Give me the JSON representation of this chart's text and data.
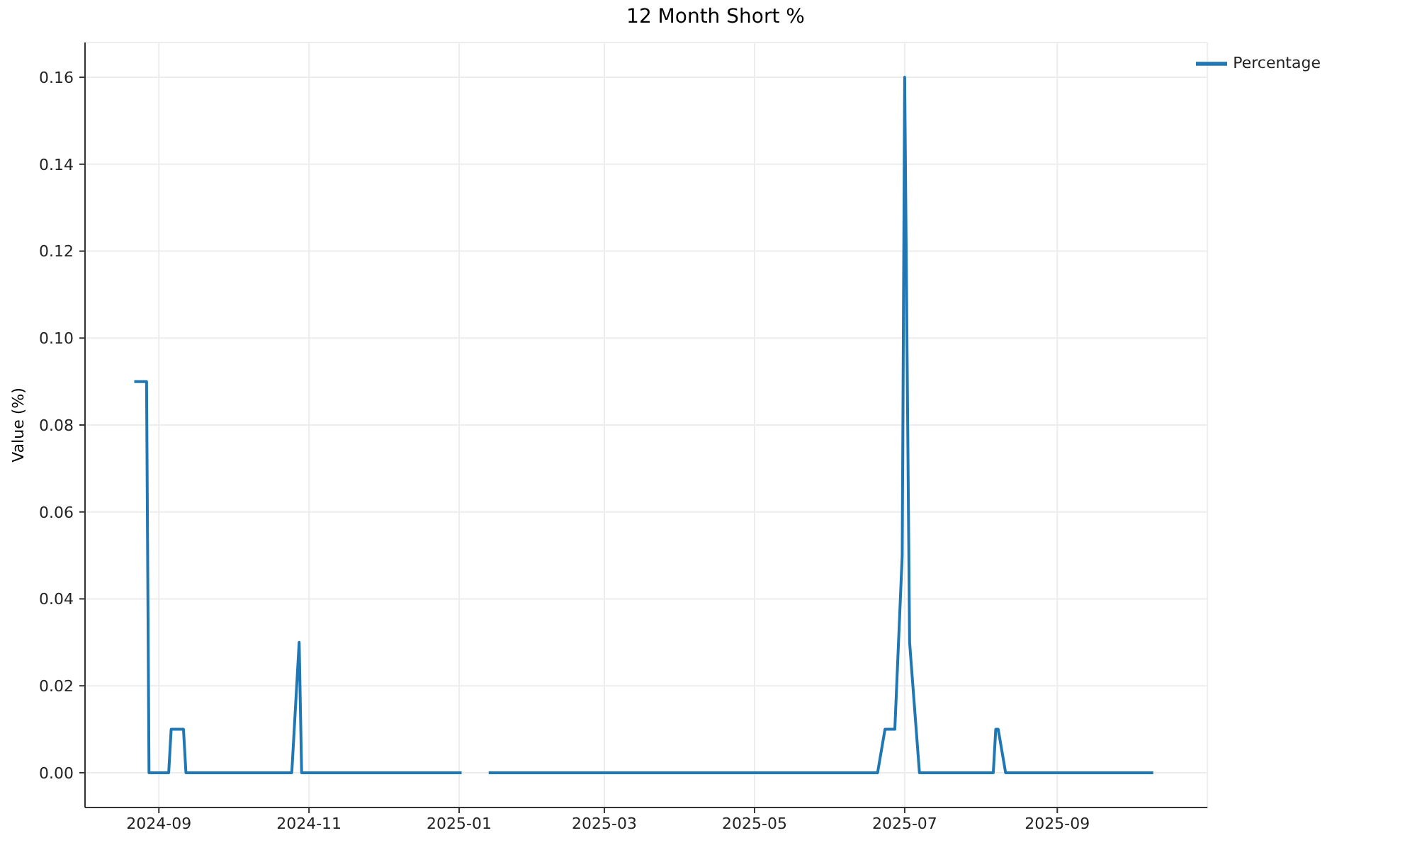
{
  "chart_data": {
    "type": "line",
    "title": "12 Month Short %",
    "ylabel": "Value (%)",
    "x": [
      "2024-08-22",
      "2024-08-27",
      "2024-08-28",
      "2024-09-05",
      "2024-09-06",
      "2024-09-11",
      "2024-09-12",
      "2024-10-25",
      "2024-10-28",
      "2024-10-29",
      "2025-01-02",
      "2025-01-07",
      "2025-01-13",
      "2025-06-20",
      "2025-06-23",
      "2025-06-27",
      "2025-06-30",
      "2025-07-01",
      "2025-07-03",
      "2025-07-07",
      "2025-08-06",
      "2025-08-07",
      "2025-08-08",
      "2025-08-11",
      "2025-10-10"
    ],
    "series": [
      {
        "name": "Percentage",
        "color": "#1f77b4",
        "values": [
          0.09,
          0.09,
          0,
          0,
          0.01,
          0.01,
          0,
          0,
          0.03,
          0,
          0,
          null,
          0,
          0,
          0.01,
          0.01,
          0.05,
          0.16,
          0.03,
          0,
          0,
          0.01,
          0.01,
          0,
          0
        ]
      }
    ],
    "xlim": [
      "2024-08-02",
      "2025-11-01"
    ],
    "xticks": [
      "2024-09",
      "2024-11",
      "2025-01",
      "2025-03",
      "2025-05",
      "2025-07",
      "2025-09"
    ],
    "ylim": [
      -0.008,
      0.168
    ],
    "yticks": [
      {
        "value": 0,
        "label": "0.00"
      },
      0.02,
      0.04,
      0.06,
      0.08,
      {
        "value": 0.1,
        "label": "0.10"
      },
      0.12,
      0.14,
      0.16
    ],
    "grid": true,
    "legend": "top right"
  }
}
